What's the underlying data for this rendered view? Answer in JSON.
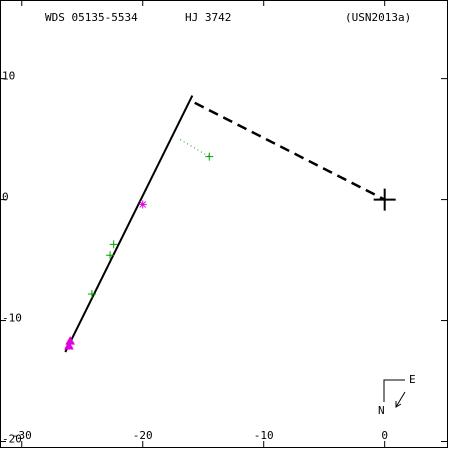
{
  "chart_data": {
    "type": "scatter",
    "header": [
      "WDS 05135-5534",
      "HJ 3742",
      "(USN2013a)"
    ],
    "xlim": [
      -31.8,
      5.4
    ],
    "ylim": [
      -20.7,
      16.5
    ],
    "xticks": [
      -30,
      -20,
      -10,
      0
    ],
    "yticks": [
      10,
      0,
      -10,
      -20
    ],
    "compass": {
      "north": "N",
      "east": "E"
    },
    "series": [
      {
        "marker": "line",
        "color": "#000000",
        "x": [
          -26.4,
          -15.9
        ],
        "y": [
          -12.6,
          8.6
        ]
      },
      {
        "marker": "dashed",
        "color": "#000000",
        "x": [
          -15.7,
          0
        ],
        "y": [
          8.0,
          0
        ]
      },
      {
        "marker": "dotted",
        "color": "#00a000",
        "x": [
          -16.9,
          -14.5
        ],
        "y": [
          4.96,
          3.55
        ]
      },
      {
        "marker": "plus",
        "color": "#00a000",
        "x": [
          -14.5,
          -22.4,
          -22.7,
          -24.2
        ],
        "y": [
          3.55,
          -3.7,
          -4.6,
          -7.8
        ]
      },
      {
        "marker": "star",
        "color": "#e000e0",
        "x": [
          -20.0
        ],
        "y": [
          -0.4
        ]
      },
      {
        "marker": "triangle",
        "color": "#e000e0",
        "x": [
          -26.0,
          -26.1
        ],
        "y": [
          -11.7,
          -12.1
        ]
      },
      {
        "marker": "cross",
        "color": "#000000",
        "x": [
          0
        ],
        "y": [
          0
        ]
      }
    ]
  }
}
